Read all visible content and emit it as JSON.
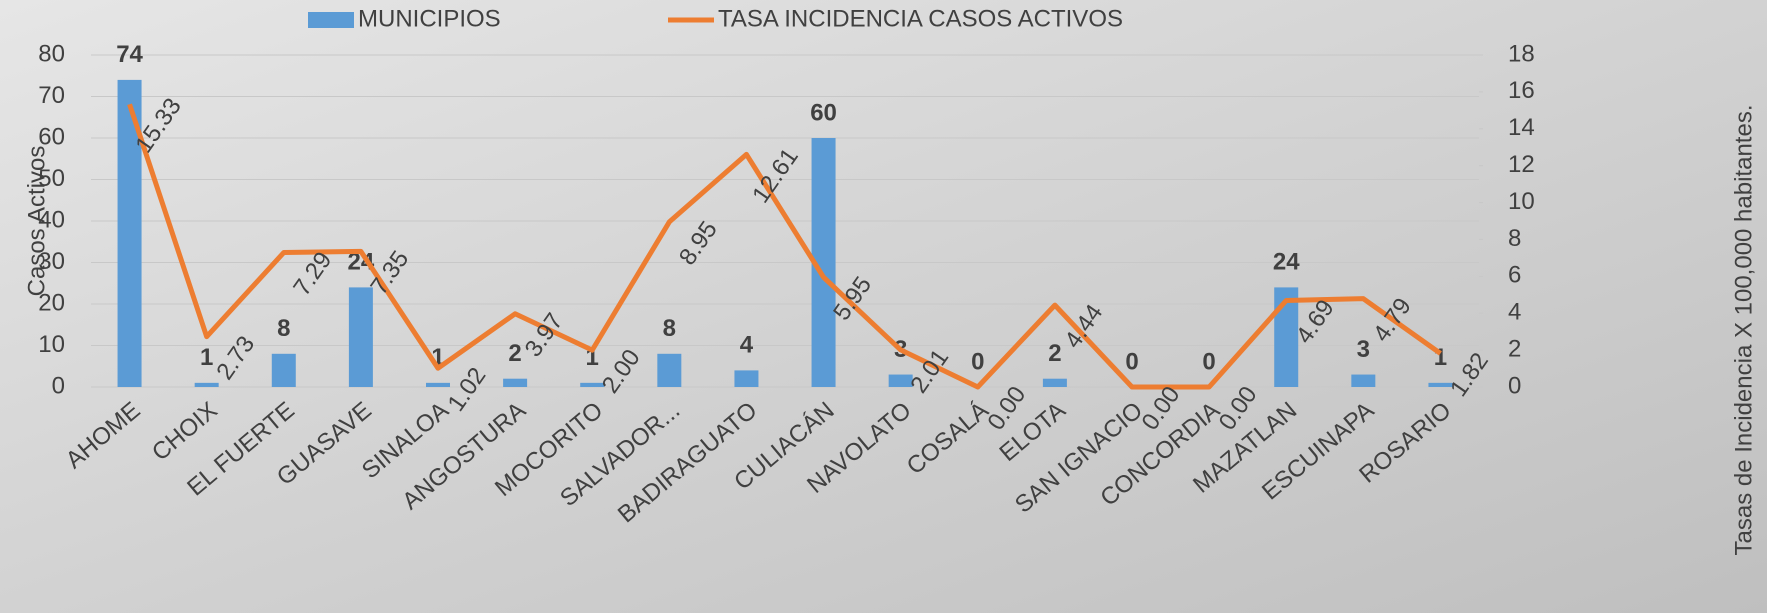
{
  "chart_data": {
    "type": "bar-line",
    "categories": [
      "AHOME",
      "CHOIX",
      "EL FUERTE",
      "GUASAVE",
      "SINALOA",
      "ANGOSTURA",
      "MOCORITO",
      "SALVADOR...",
      "BADIRAGUATO",
      "CULIACÁN",
      "NAVOLATO",
      "COSALÁ",
      "ELOTA",
      "SAN IGNACIO",
      "CONCORDIA",
      "MAZATLAN",
      "ESCUINAPA",
      "ROSARIO"
    ],
    "series": [
      {
        "name": "MUNICIPIOS",
        "type": "bar",
        "color": "#5b9bd5",
        "values": [
          74,
          1,
          8,
          24,
          1,
          2,
          1,
          8,
          4,
          60,
          3,
          0,
          2,
          0,
          0,
          24,
          3,
          1
        ]
      },
      {
        "name": "TASA INCIDENCIA CASOS ACTIVOS",
        "type": "line",
        "axis": "y2",
        "color": "#ed7d31",
        "values": [
          15.33,
          2.73,
          7.29,
          7.35,
          1.02,
          3.97,
          2.0,
          8.95,
          12.61,
          5.95,
          2.01,
          0,
          4.44,
          0,
          0,
          4.69,
          4.79,
          1.82
        ],
        "value_labels": [
          "15.33",
          "2.73",
          "7.29",
          "7.35",
          "1.02",
          "3.97",
          "2.00",
          "8.95",
          "12.61",
          "5.95",
          "2.01",
          "0.00",
          "4.44",
          "0.00",
          "0.00",
          "4.69",
          "4.79",
          "1.82"
        ]
      }
    ],
    "ylabel": "Casos Activos",
    "y2label": "Tasas de Incidencia X 100,000 habitantes.",
    "ylim": [
      0,
      80
    ],
    "yticks": [
      0,
      10,
      20,
      30,
      40,
      50,
      60,
      70,
      80
    ],
    "y2lim": [
      0,
      18
    ],
    "y2ticks": [
      0,
      2,
      4,
      6,
      8,
      10,
      12,
      14,
      16,
      18
    ],
    "grid": true,
    "legend": "top"
  }
}
